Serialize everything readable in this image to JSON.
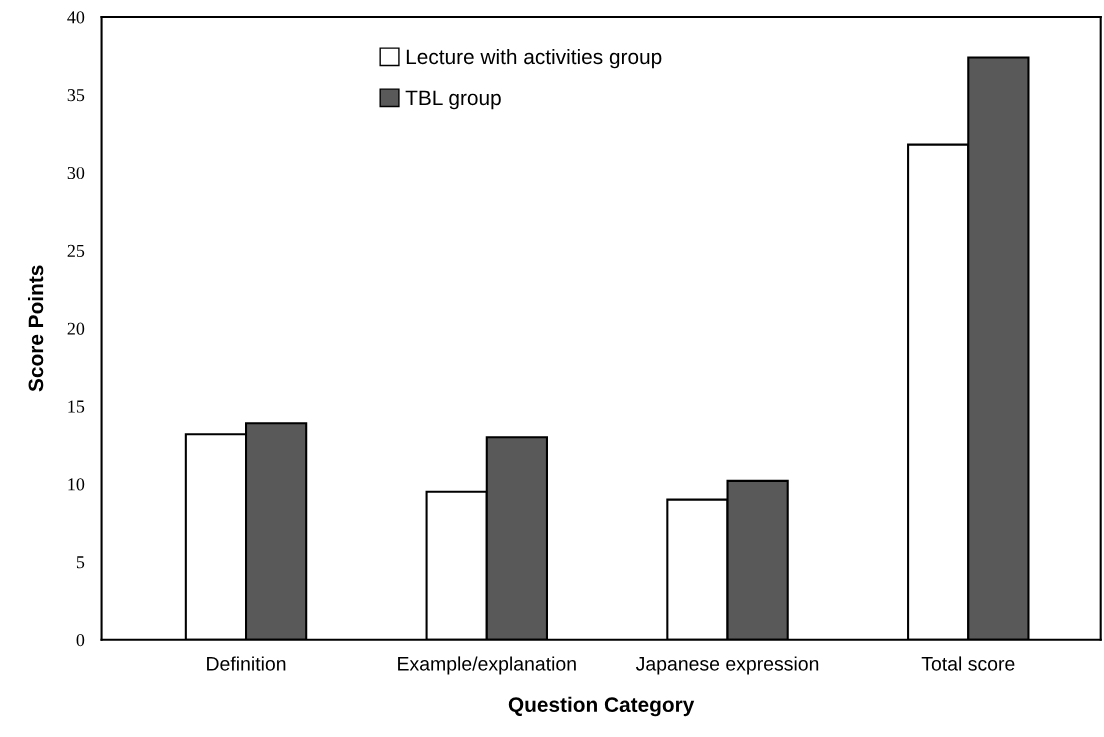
{
  "chart_data": {
    "type": "bar",
    "xlabel": "Question Category",
    "ylabel": "Score Points",
    "categories": [
      "Definition",
      "Example/explanation",
      "Japanese expression",
      "Total score"
    ],
    "series": [
      {
        "name": "Lecture with activities group",
        "color": "#ffffff",
        "values": [
          13.2,
          9.5,
          9.0,
          31.8
        ]
      },
      {
        "name": "TBL group",
        "color": "#595959",
        "values": [
          13.9,
          13.0,
          10.2,
          37.4
        ]
      }
    ],
    "ylim": [
      0,
      40
    ],
    "yticks": [
      0,
      5,
      10,
      15,
      20,
      25,
      30,
      35,
      40
    ],
    "grid": false,
    "legend": "top"
  }
}
